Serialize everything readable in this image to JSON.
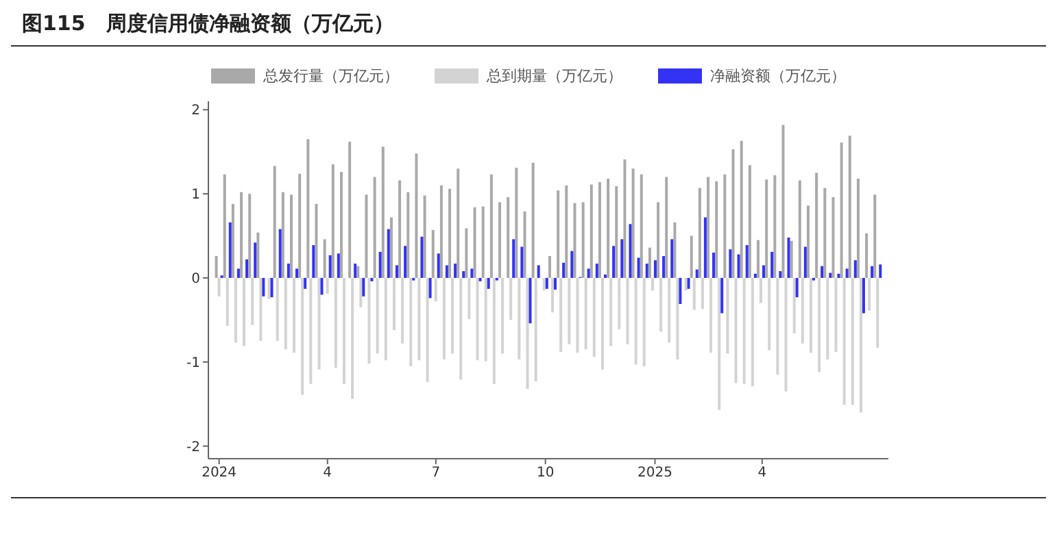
{
  "chart_data": {
    "type": "bar",
    "title": "图115　周度信用债净融资额（万亿元）",
    "x": [
      "2024-01-01",
      "2024-01-08",
      "2024-01-15",
      "2024-01-22",
      "2024-01-29",
      "2024-02-05",
      "2024-02-12",
      "2024-02-19",
      "2024-02-26",
      "2024-03-04",
      "2024-03-11",
      "2024-03-18",
      "2024-03-25",
      "2024-04-01",
      "2024-04-08",
      "2024-04-15",
      "2024-04-22",
      "2024-04-29",
      "2024-05-06",
      "2024-05-13",
      "2024-05-20",
      "2024-05-27",
      "2024-06-03",
      "2024-06-10",
      "2024-06-17",
      "2024-06-24",
      "2024-07-01",
      "2024-07-08",
      "2024-07-15",
      "2024-07-22",
      "2024-07-29",
      "2024-08-05",
      "2024-08-12",
      "2024-08-19",
      "2024-08-26",
      "2024-09-02",
      "2024-09-09",
      "2024-09-16",
      "2024-09-23",
      "2024-09-30",
      "2024-10-07",
      "2024-10-14",
      "2024-10-21",
      "2024-10-28",
      "2024-11-04",
      "2024-11-11",
      "2024-11-18",
      "2024-11-25",
      "2024-12-02",
      "2024-12-09",
      "2024-12-16",
      "2024-12-23",
      "2024-12-30",
      "2025-01-06",
      "2025-01-13",
      "2025-01-20",
      "2025-01-27",
      "2025-02-03",
      "2025-02-10",
      "2025-02-17",
      "2025-02-24",
      "2025-03-03",
      "2025-03-10",
      "2025-03-17",
      "2025-03-24",
      "2025-03-31",
      "2025-04-07",
      "2025-04-14",
      "2025-04-21",
      "2025-04-28",
      "2025-05-05",
      "2025-05-12",
      "2025-05-19",
      "2025-05-26",
      "2025-06-02",
      "2025-06-09",
      "2025-06-16",
      "2025-06-23",
      "2025-06-30",
      "2025-07-07"
    ],
    "series": [
      {
        "name": "总发行量（万亿元）",
        "color": "#a9a9a9",
        "values": [
          0.26,
          1.23,
          0.88,
          1.02,
          1.0,
          0.54,
          null,
          1.33,
          1.02,
          0.99,
          1.24,
          1.65,
          0.88,
          0.46,
          1.35,
          1.26,
          1.62,
          0.14,
          0.99,
          1.2,
          1.56,
          0.72,
          1.16,
          1.02,
          1.48,
          0.98,
          0.57,
          1.1,
          1.06,
          1.3,
          0.59,
          0.84,
          0.85,
          1.23,
          0.9,
          0.96,
          1.31,
          0.79,
          1.37,
          null,
          0.26,
          1.04,
          1.1,
          0.89,
          0.9,
          1.11,
          1.14,
          1.18,
          1.09,
          1.41,
          1.3,
          1.23,
          0.36,
          0.9,
          1.2,
          0.66,
          null,
          0.5,
          1.07,
          1.2,
          1.15,
          1.23,
          1.53,
          1.63,
          1.34,
          0.45,
          1.17,
          1.22,
          1.82,
          0.44,
          1.16,
          0.86,
          1.25,
          1.07,
          0.96,
          1.61,
          1.69,
          1.18,
          0.53,
          0.99
        ]
      },
      {
        "name": "总到期量（万亿元）",
        "color": "#d3d3d3",
        "values": [
          -0.22,
          -0.57,
          -0.77,
          -0.81,
          -0.56,
          -0.75,
          -0.25,
          -0.75,
          -0.85,
          -0.89,
          -1.39,
          -1.26,
          -1.09,
          -0.19,
          -1.07,
          -1.26,
          -1.44,
          -0.35,
          -1.02,
          -0.9,
          -0.98,
          -0.62,
          -0.78,
          -1.05,
          -0.98,
          -1.24,
          -0.28,
          -0.97,
          -0.9,
          -1.21,
          -0.49,
          -0.98,
          -0.99,
          -1.26,
          -0.9,
          -0.5,
          -0.97,
          -1.32,
          -1.23,
          -0.15,
          -0.41,
          -0.88,
          -0.79,
          -0.89,
          -0.85,
          -0.94,
          -1.09,
          -0.81,
          -0.61,
          -0.79,
          -1.03,
          -1.05,
          -0.15,
          -0.64,
          -0.77,
          -0.97,
          -0.15,
          -0.38,
          -0.37,
          -0.89,
          -1.57,
          -0.9,
          -1.25,
          -1.26,
          -1.29,
          -0.3,
          -0.86,
          -1.15,
          -1.35,
          -0.66,
          -0.78,
          -0.89,
          -1.12,
          -0.97,
          -0.88,
          -1.51,
          -1.51,
          -1.6,
          -0.39,
          -0.83
        ]
      },
      {
        "name": "净融资额（万亿元）",
        "color": "#3333f5",
        "values": [
          0.03,
          0.66,
          0.11,
          0.22,
          0.42,
          -0.22,
          -0.23,
          0.58,
          0.17,
          0.11,
          -0.13,
          0.39,
          -0.2,
          0.27,
          0.29,
          0.0,
          0.17,
          -0.22,
          -0.04,
          0.31,
          0.58,
          0.15,
          0.38,
          -0.03,
          0.49,
          -0.24,
          0.29,
          0.15,
          0.17,
          0.08,
          0.11,
          -0.04,
          -0.13,
          -0.03,
          0.0,
          0.46,
          0.37,
          -0.54,
          0.15,
          -0.13,
          -0.14,
          0.18,
          0.32,
          0.01,
          0.11,
          0.17,
          0.04,
          0.38,
          0.46,
          0.64,
          0.24,
          0.17,
          0.21,
          0.26,
          0.46,
          -0.31,
          -0.13,
          0.1,
          0.72,
          0.3,
          -0.42,
          0.34,
          0.28,
          0.39,
          0.05,
          0.15,
          0.31,
          0.08,
          0.48,
          -0.23,
          0.37,
          -0.03,
          0.14,
          0.06,
          0.05,
          0.11,
          0.21,
          -0.42,
          0.14,
          0.16
        ]
      }
    ],
    "xlim": [
      "2023-12-23",
      "2025-07-16"
    ],
    "xticks": [
      {
        "value": "2024-01-01",
        "label": "2024"
      },
      {
        "value": "2024-04-01",
        "label": "4"
      },
      {
        "value": "2024-07-01",
        "label": "7"
      },
      {
        "value": "2024-10-01",
        "label": "10"
      },
      {
        "value": "2025-01-01",
        "label": "2025"
      },
      {
        "value": "2025-04-01",
        "label": "4"
      }
    ],
    "ylim": [
      -2.15,
      2.1
    ],
    "yticks": [
      -2,
      -1,
      0,
      1,
      2
    ],
    "grid": false,
    "legend": "top"
  }
}
